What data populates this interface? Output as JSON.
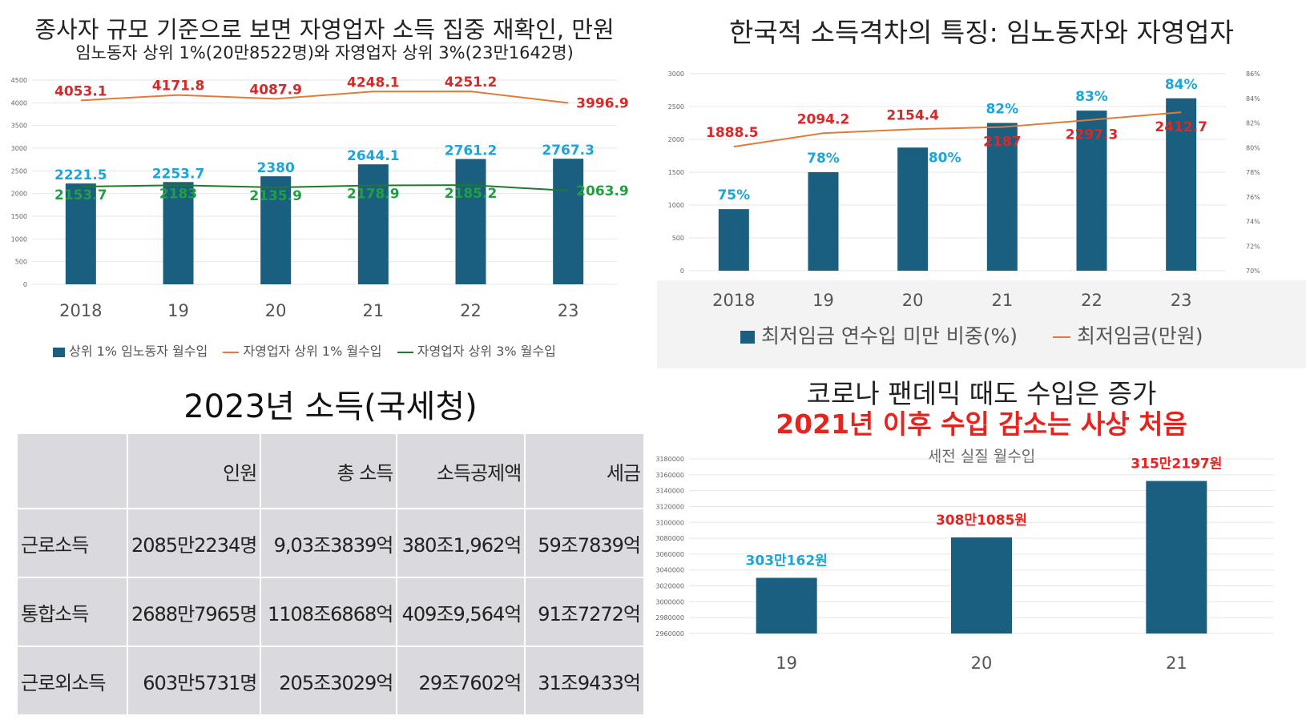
{
  "panel1": {
    "title": "종사자 규모 기준으로 보면 자영업자 소득 집중 재확인, 만원",
    "subtitle": "임노동자 상위 1%(20만8522명)와 자영업자 상위 3%(23만1642명)",
    "legend": [
      "상위 1% 임노동자 월수입",
      "자영업자 상위 1% 월수입",
      "자영업자 상위 3% 월수입"
    ]
  },
  "panel2": {
    "title": "한국적 소득격차의 특징: 임노동자와 자영업자",
    "legend": [
      "최저임금 연수입 미만 비중(%)",
      "최저임금(만원)"
    ]
  },
  "panel3": {
    "title": "2023년 소득(국세청)",
    "columns": [
      "",
      "인원",
      "총 소득",
      "소득공제액",
      "세금"
    ],
    "rows": [
      [
        "근로소득",
        "2085만2234명",
        "9,03조3839억",
        "380조1,962억",
        "59조7839억"
      ],
      [
        "통합소득",
        "2688만7965명",
        "1108조6868억",
        "409조9,564억",
        "91조7272억"
      ],
      [
        "근로외소득",
        "603만5731명",
        "205조3029억",
        "29조7602억",
        "31조9433억"
      ]
    ]
  },
  "panel4": {
    "title": "코로나 팬데믹 때도 수입은 증가",
    "headline": "2021년 이후 수입 감소는 사상 처음",
    "subtitle": "세전 실질 월수입"
  },
  "chart_data": [
    {
      "type": "bar",
      "title": "종사자 규모 기준으로 보면 자영업자 소득 집중 재확인, 만원",
      "categories": [
        "2018",
        "19",
        "20",
        "21",
        "22",
        "23"
      ],
      "series": [
        {
          "name": "상위 1% 임노동자 월수입",
          "type": "bar",
          "values": [
            2221.5,
            2253.7,
            2380,
            2644.1,
            2761.2,
            2767.3
          ],
          "labels": [
            "2221.5",
            "2253.7",
            "2380",
            "2644.1",
            "2761.2",
            "2767.3"
          ],
          "color": "#1b5f80"
        },
        {
          "name": "자영업자 상위 1% 월수입",
          "type": "line",
          "values": [
            4053.1,
            4171.8,
            4087.9,
            4248.1,
            4251.2,
            3996.9
          ],
          "labels": [
            "4053.1",
            "4171.8",
            "4087.9",
            "4248.1",
            "4251.2",
            "3996.9"
          ],
          "color": "#e07b39"
        },
        {
          "name": "자영업자 상위 3% 월수입",
          "type": "line",
          "values": [
            2153.7,
            2183,
            2135.9,
            2178.9,
            2185.2,
            2063.9
          ],
          "labels": [
            "2153.7",
            "2183",
            "2135.9",
            "2178.9",
            "2185.2",
            "2063.9"
          ],
          "color": "#1e7a2e"
        }
      ],
      "yticks": [
        "0",
        "500",
        "1000",
        "1500",
        "2000",
        "2500",
        "3000",
        "3500",
        "4000",
        "4500"
      ],
      "ylim": [
        0,
        4500
      ],
      "grid": true,
      "legend": "bottom"
    },
    {
      "type": "bar",
      "title": "한국적 소득격차의 특징: 임노동자와 자영업자",
      "categories": [
        "2018",
        "19",
        "20",
        "21",
        "22",
        "23"
      ],
      "series": [
        {
          "name": "최저임금 연수입 미만 비중(%)",
          "type": "bar",
          "axis": "right",
          "values": [
            75,
            78,
            80,
            82,
            83,
            84
          ],
          "labels": [
            "75%",
            "78%",
            "80%",
            "82%",
            "83%",
            "84%"
          ],
          "color": "#1b5f80"
        },
        {
          "name": "최저임금(만원)",
          "type": "line",
          "axis": "left",
          "values": [
            1888.5,
            2094.2,
            2154.4,
            2187,
            2297.3,
            2412.7
          ],
          "labels": [
            "1888.5",
            "2094.2",
            "2154.4",
            "2187",
            "2297.3",
            "2412.7"
          ],
          "color": "#e07b39"
        }
      ],
      "yticks_left": [
        "0",
        "500",
        "1000",
        "1500",
        "2000",
        "2500",
        "3000"
      ],
      "yticks_right": [
        "70%",
        "72%",
        "74%",
        "76%",
        "78%",
        "80%",
        "82%",
        "84%",
        "86%"
      ],
      "ylim_left": [
        0,
        3000
      ],
      "ylim_right": [
        70,
        86
      ],
      "grid": true,
      "legend": "bottom"
    },
    {
      "type": "table",
      "title": "2023년 소득(국세청)",
      "columns": [
        "",
        "인원",
        "총 소득",
        "소득공제액",
        "세금"
      ],
      "rows": [
        [
          "근로소득",
          "2085만2234명",
          "9,03조3839억",
          "380조1,962억",
          "59조7839억"
        ],
        [
          "통합소득",
          "2688만7965명",
          "1108조6868억",
          "409조9,564억",
          "91조7272억"
        ],
        [
          "근로외소득",
          "603만5731명",
          "205조3029억",
          "29조7602억",
          "31조9433억"
        ]
      ]
    },
    {
      "type": "bar",
      "title": "세전 실질 월수입",
      "categories": [
        "19",
        "20",
        "21"
      ],
      "values": [
        3030162,
        3081085,
        3152197
      ],
      "labels": [
        "303만162원",
        "308만1085원",
        "315만2197원"
      ],
      "label_colors": [
        "#1ba6d9",
        "#e8231e",
        "#e8231e"
      ],
      "color": "#1b5f80",
      "yticks": [
        "2960000",
        "2980000",
        "3000000",
        "3020000",
        "3040000",
        "3060000",
        "3080000",
        "3100000",
        "3120000",
        "3140000",
        "3160000",
        "3180000"
      ],
      "ylim": [
        2960000,
        3180000
      ],
      "grid": true
    }
  ]
}
